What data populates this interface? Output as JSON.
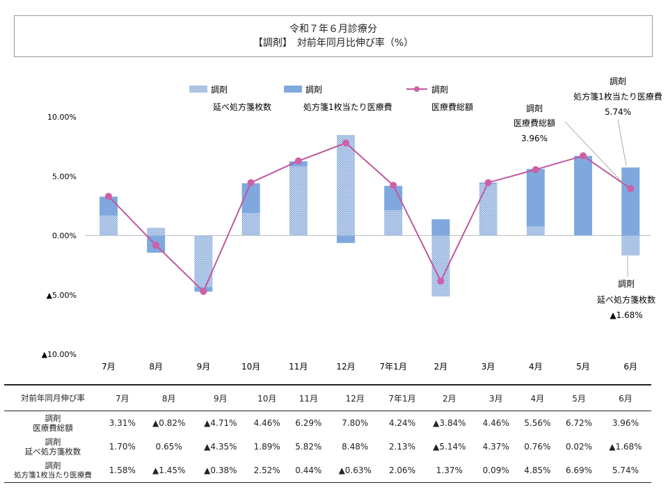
{
  "title": {
    "line1": "令和７年６月診療分",
    "line2": "【調剤】　対前年同月比伸び率（%）"
  },
  "legend": [
    {
      "line1": "調剤",
      "line2": "延べ処方箋枚数"
    },
    {
      "line1": "調剤",
      "line2": "処方箋1枚当たり医療費"
    },
    {
      "line1": "調剤",
      "line2": "医療費総額"
    }
  ],
  "annotations": [
    {
      "line1": "調剤",
      "line2": "医療費総額",
      "line3": "3.96%"
    },
    {
      "line1": "調剤",
      "line2": "処方箋1枚当たり医療費",
      "line3": "5.74%"
    },
    {
      "line1": "調剤",
      "line2": "延べ処方箋枚数",
      "line3": "▲1.68%"
    }
  ],
  "colors": {
    "prescriptions_bar": "#b7cbe8",
    "per_prescription_bar": "#7fa9de",
    "total_line": "#c0579a",
    "total_marker": "#cf5fa6"
  },
  "chart_data": {
    "type": "bar",
    "categories": [
      "7月",
      "8月",
      "9月",
      "10月",
      "11月",
      "12月",
      "7年1月",
      "2月",
      "3月",
      "4月",
      "5月",
      "6月"
    ],
    "ylim": [
      -10,
      10
    ],
    "y_ticks": [
      {
        "v": 10,
        "label": "10.00%"
      },
      {
        "v": 5,
        "label": "5.00%"
      },
      {
        "v": 0,
        "label": "0.00%"
      },
      {
        "v": -5,
        "label": "▲5.00%"
      },
      {
        "v": -10,
        "label": "▲10.00%"
      }
    ],
    "grid": false,
    "legend_position": "top",
    "series": [
      {
        "name": "調剤 延べ処方箋枚数",
        "kind": "stacked-bar",
        "values": [
          1.7,
          0.65,
          -4.35,
          1.89,
          5.82,
          8.48,
          2.13,
          -5.14,
          4.37,
          0.76,
          0.02,
          -1.68
        ]
      },
      {
        "name": "調剤 処方箋1枚当たり医療費",
        "kind": "stacked-bar",
        "values": [
          1.58,
          -1.45,
          -0.38,
          2.52,
          0.44,
          -0.63,
          2.06,
          1.37,
          0.09,
          4.85,
          6.69,
          5.74
        ]
      },
      {
        "name": "調剤 医療費総額",
        "kind": "line",
        "values": [
          3.31,
          -0.82,
          -4.71,
          4.46,
          6.29,
          7.8,
          4.24,
          -3.84,
          4.46,
          5.56,
          6.72,
          3.96
        ]
      }
    ]
  },
  "table": {
    "header_label": "対前年同月伸び率",
    "months": [
      "7月",
      "8月",
      "9月",
      "10月",
      "11月",
      "12月",
      "7年1月",
      "2月",
      "3月",
      "4月",
      "5月",
      "6月"
    ],
    "rows": [
      {
        "label1": "調剤",
        "label2": "医療費総額",
        "values": [
          "3.31%",
          "▲0.82%",
          "▲4.71%",
          "4.46%",
          "6.29%",
          "7.80%",
          "4.24%",
          "▲3.84%",
          "4.46%",
          "5.56%",
          "6.72%",
          "3.96%"
        ]
      },
      {
        "label1": "調剤",
        "label2": "延べ処方箋枚数",
        "values": [
          "1.70%",
          "0.65%",
          "▲4.35%",
          "1.89%",
          "5.82%",
          "8.48%",
          "2.13%",
          "▲5.14%",
          "4.37%",
          "0.76%",
          "0.02%",
          "▲1.68%"
        ]
      },
      {
        "label1": "調剤",
        "label2": "処方箋1枚当たり医療費",
        "values": [
          "1.58%",
          "▲1.45%",
          "▲0.38%",
          "2.52%",
          "0.44%",
          "▲0.63%",
          "2.06%",
          "1.37%",
          "0.09%",
          "4.85%",
          "6.69%",
          "5.74%"
        ]
      }
    ]
  }
}
